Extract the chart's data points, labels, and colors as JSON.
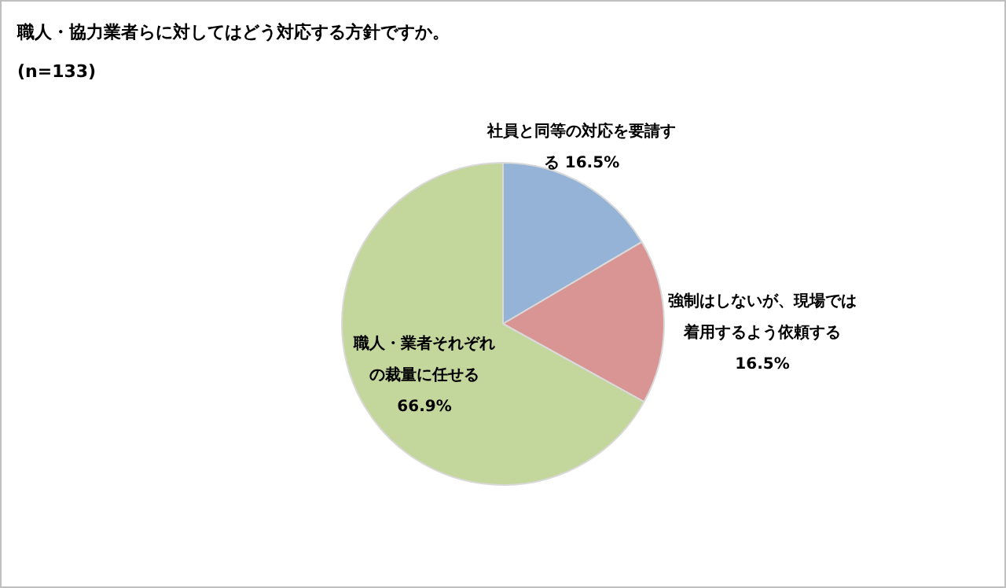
{
  "chart_data": {
    "type": "pie",
    "title": "職人・協力業者らに対してはどう対応する方針ですか。",
    "subtitle": "(n=133)",
    "categories": [
      "社員と同等の対応を要請する",
      "強制はしないが、現場では着用するよう依頼する",
      "職人・業者それぞれの裁量に任せる"
    ],
    "values": [
      16.5,
      16.5,
      66.9
    ],
    "colors": [
      "#95b3d7",
      "#d99594",
      "#c3d69b"
    ],
    "value_labels": [
      "16.5%",
      "16.5%",
      "66.9%"
    ],
    "legend": false
  }
}
